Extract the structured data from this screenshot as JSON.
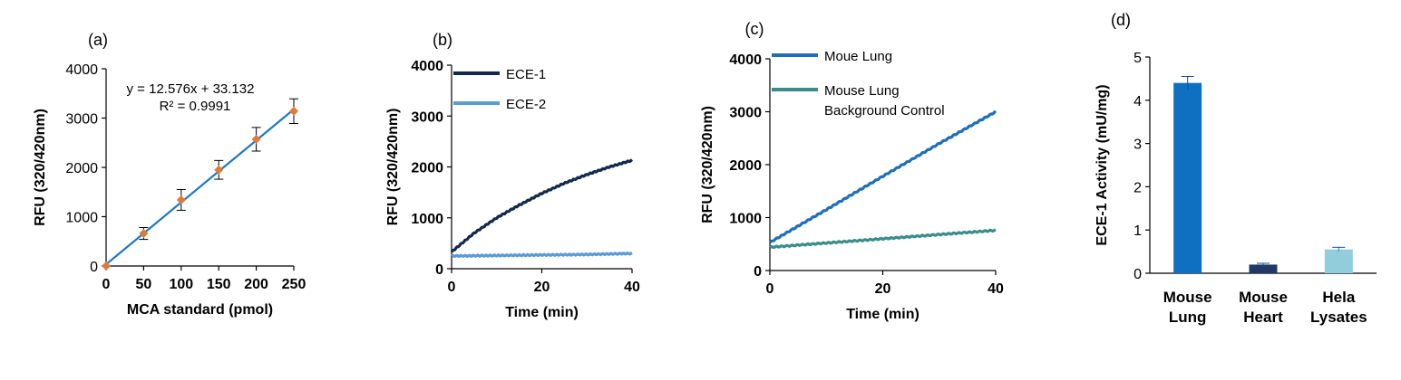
{
  "chart_data": [
    {
      "panel": "(a)",
      "type": "scatter",
      "xlabel": "MCA standard (pmol)",
      "ylabel": "RFU (320/420nm)",
      "xlim": [
        0,
        250
      ],
      "ylim": [
        0,
        4000
      ],
      "xticks": [
        "0",
        "50",
        "100",
        "150",
        "200",
        "250"
      ],
      "yticks": [
        "0",
        "1000",
        "2000",
        "3000",
        "4000"
      ],
      "x": [
        0,
        50,
        100,
        150,
        200,
        250
      ],
      "y": [
        0,
        660,
        1340,
        1950,
        2570,
        3140
      ],
      "error": [
        0,
        120,
        210,
        190,
        240,
        250
      ],
      "trendline": {
        "slope": 12.576,
        "intercept": 33.132,
        "color": "#1f77c0"
      },
      "marker_color": "#e07a3a",
      "equation": "y = 12.576x + 33.132",
      "r2": "R² = 0.9991"
    },
    {
      "panel": "(b)",
      "type": "line",
      "xlabel": "Time (min)",
      "ylabel": "RFU (320/420nm)",
      "xlim": [
        0,
        40
      ],
      "ylim": [
        0,
        4000
      ],
      "xticks": [
        "0",
        "20",
        "40"
      ],
      "yticks": [
        "0",
        "1000",
        "2000",
        "3000",
        "4000"
      ],
      "legend_position": "top-left",
      "series": [
        {
          "name": "ECE-1",
          "color": "#13294b",
          "x": [
            0,
            5,
            10,
            15,
            20,
            25,
            30,
            35,
            40
          ],
          "values": [
            330,
            700,
            1000,
            1250,
            1480,
            1680,
            1850,
            2000,
            2130
          ]
        },
        {
          "name": "ECE-2",
          "color": "#5b9bd5",
          "x": [
            0,
            10,
            20,
            30,
            40
          ],
          "values": [
            250,
            260,
            270,
            280,
            300
          ]
        }
      ]
    },
    {
      "panel": "(c)",
      "type": "line",
      "xlabel": "Time (min)",
      "ylabel": "RFU (320/420nm)",
      "xlim": [
        0,
        40
      ],
      "ylim": [
        0,
        4000
      ],
      "xticks": [
        "0",
        "20",
        "40"
      ],
      "yticks": [
        "0",
        "1000",
        "2000",
        "3000",
        "4000"
      ],
      "legend_position": "top-left",
      "series": [
        {
          "name": "Moue Lung",
          "color": "#1f6fb8",
          "x": [
            0,
            10,
            20,
            30,
            40
          ],
          "values": [
            530,
            1150,
            1780,
            2400,
            3000
          ]
        },
        {
          "name_lines": [
            "Mouse Lung",
            "Background Control"
          ],
          "color": "#3b8c8c",
          "x": [
            0,
            10,
            20,
            30,
            40
          ],
          "values": [
            440,
            520,
            600,
            680,
            760
          ]
        }
      ]
    },
    {
      "panel": "(d)",
      "type": "bar",
      "ylabel": "ECE-1 Activity (mU/mg)",
      "ylim": [
        0,
        5
      ],
      "yticks": [
        "0",
        "1",
        "2",
        "3",
        "4",
        "5"
      ],
      "categories": [
        [
          "Mouse",
          "Lung"
        ],
        [
          "Mouse",
          "Heart"
        ],
        [
          "Hela",
          "Lysates"
        ]
      ],
      "values": [
        4.4,
        0.2,
        0.55
      ],
      "error": [
        0.15,
        0.03,
        0.05
      ],
      "colors": [
        "#0f6fc0",
        "#1f3864",
        "#92cddc"
      ]
    }
  ]
}
